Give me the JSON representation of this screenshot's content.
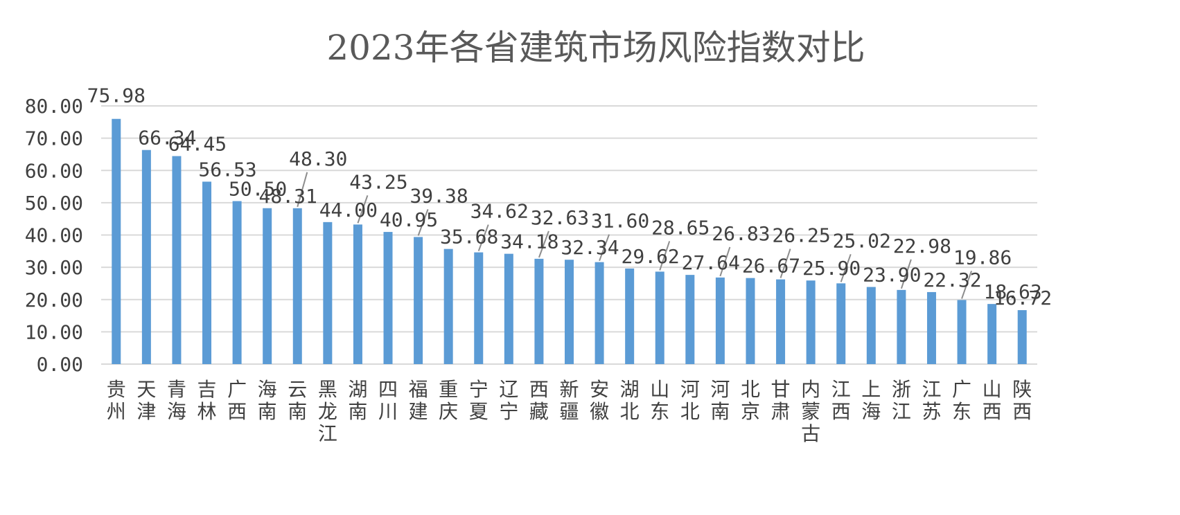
{
  "chart_data": {
    "type": "bar",
    "title": "2023年各省建筑市场风险指数对比",
    "xlabel": "",
    "ylabel": "",
    "ylim": [
      0,
      80
    ],
    "y_ticks": [
      "0.00",
      "10.00",
      "20.00",
      "30.00",
      "40.00",
      "50.00",
      "60.00",
      "70.00",
      "80.00"
    ],
    "grid": true,
    "legend": "none",
    "bar_color": "#5b9bd5",
    "categories": [
      "贵州",
      "天津",
      "青海",
      "吉林",
      "广西",
      "海南",
      "云南",
      "黑龙江",
      "湖南",
      "四川",
      "福建",
      "重庆",
      "宁夏",
      "辽宁",
      "西藏",
      "新疆",
      "安徽",
      "湖北",
      "山东",
      "河北",
      "河南",
      "北京",
      "甘肃",
      "内蒙古",
      "江西",
      "上海",
      "浙江",
      "江苏",
      "广东",
      "山西",
      "陕西"
    ],
    "values": [
      75.98,
      66.34,
      64.45,
      56.53,
      50.5,
      48.31,
      48.3,
      44.0,
      43.25,
      40.95,
      39.38,
      35.68,
      34.62,
      34.18,
      32.63,
      32.34,
      31.6,
      29.62,
      28.65,
      27.64,
      26.83,
      26.67,
      26.25,
      25.9,
      25.02,
      23.9,
      22.98,
      22.32,
      19.86,
      18.63,
      16.72
    ],
    "data_labels": [
      "75.98",
      "66.34",
      "64.45",
      "56.53",
      "50.50",
      "48.31",
      "48.30",
      "44.00",
      "43.25",
      "40.95",
      "39.38",
      "35.68",
      "34.62",
      "34.18",
      "32.63",
      "32.34",
      "31.60",
      "29.62",
      "28.65",
      "27.64",
      "26.83",
      "26.67",
      "26.25",
      "25.90",
      "25.02",
      "23.90",
      "22.98",
      "22.32",
      "19.86",
      "18.63",
      "16.72"
    ]
  }
}
